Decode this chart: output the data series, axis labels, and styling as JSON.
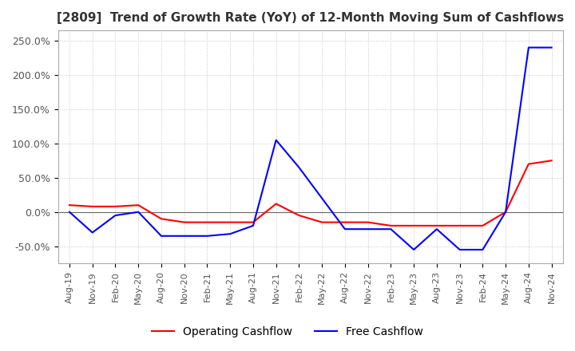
{
  "title": "[2809]  Trend of Growth Rate (YoY) of 12-Month Moving Sum of Cashflows",
  "title_fontsize": 11,
  "ylim": [
    -75,
    265
  ],
  "yticks": [
    -50,
    0,
    50,
    100,
    150,
    200,
    250
  ],
  "yticklabels": [
    "-50.0%",
    "0.0%",
    "50.0%",
    "100.0%",
    "150.0%",
    "200.0%",
    "250.0%"
  ],
  "background_color": "#ffffff",
  "grid_color": "#bbbbbb",
  "x_labels": [
    "Aug-19",
    "Nov-19",
    "Feb-20",
    "May-20",
    "Aug-20",
    "Nov-20",
    "Feb-21",
    "May-21",
    "Aug-21",
    "Nov-21",
    "Feb-22",
    "May-22",
    "Aug-22",
    "Nov-22",
    "Feb-23",
    "May-23",
    "Aug-23",
    "Nov-23",
    "Feb-24",
    "May-24",
    "Aug-24",
    "Nov-24"
  ],
  "operating_cashflow": [
    10,
    8,
    8,
    10,
    -10,
    -15,
    -15,
    -15,
    -15,
    12,
    -5,
    -15,
    -15,
    -15,
    -20,
    -20,
    -20,
    -20,
    -20,
    0,
    70,
    75
  ],
  "free_cashflow": [
    0,
    -30,
    -5,
    0,
    -35,
    -35,
    -35,
    -32,
    -20,
    105,
    65,
    20,
    -25,
    -25,
    -25,
    -55,
    -25,
    -55,
    -55,
    0,
    240,
    240
  ],
  "operating_color": "#ff0000",
  "free_color": "#0000ff",
  "line_width": 1.5,
  "title_color": "#333333",
  "tick_color": "#555555",
  "tick_fontsize": 8,
  "ytick_fontsize": 9,
  "legend_fontsize": 10
}
